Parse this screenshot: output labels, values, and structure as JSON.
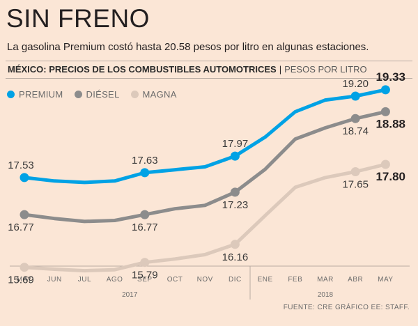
{
  "title": "SIN FRENO",
  "subtitle": "La gasolina Premium costó hasta 20.58 pesos por litro en algunas estaciones.",
  "header": {
    "main": "MÉXICO: PRECIOS DE LOS COMBUSTIBLES AUTOMOTRICES",
    "separator": "|",
    "unit": "PESOS POR LITRO"
  },
  "source": "FUENTE: CRE GRÁFICO EE: STAFF.",
  "chart_data": {
    "type": "line",
    "categories": [
      "MAY",
      "JUN",
      "JUL",
      "AGO",
      "SEP",
      "OCT",
      "NOV",
      "DIC",
      "ENE",
      "FEB",
      "MAR",
      "ABR",
      "MAY"
    ],
    "year_labels": [
      {
        "label": "2017",
        "from": 0,
        "to": 7
      },
      {
        "label": "2018",
        "from": 8,
        "to": 12
      }
    ],
    "ylim": [
      15.2,
      19.6
    ],
    "series": [
      {
        "name": "PREMIUM",
        "color": "#00a2e5",
        "values": [
          17.53,
          17.46,
          17.43,
          17.46,
          17.63,
          17.69,
          17.75,
          17.97,
          18.36,
          18.88,
          19.12,
          19.2,
          19.33
        ],
        "markers": [
          0,
          4,
          7,
          11,
          12
        ],
        "labels": [
          {
            "i": 0,
            "text": "17.53",
            "pos": "above",
            "bold": false
          },
          {
            "i": 4,
            "text": "17.63",
            "pos": "above",
            "bold": false
          },
          {
            "i": 7,
            "text": "17.97",
            "pos": "above",
            "bold": false
          },
          {
            "i": 11,
            "text": "19.20",
            "pos": "above",
            "bold": false
          },
          {
            "i": 12,
            "text": "19.33",
            "pos": "above",
            "bold": true
          }
        ]
      },
      {
        "name": "DIÉSEL",
        "color": "#8c8c8c",
        "values": [
          16.77,
          16.69,
          16.63,
          16.65,
          16.77,
          16.89,
          16.96,
          17.23,
          17.7,
          18.32,
          18.55,
          18.74,
          18.88
        ],
        "markers": [
          0,
          4,
          7,
          11,
          12
        ],
        "labels": [
          {
            "i": 0,
            "text": "16.77",
            "pos": "below",
            "bold": false
          },
          {
            "i": 4,
            "text": "16.77",
            "pos": "below",
            "bold": false
          },
          {
            "i": 7,
            "text": "17.23",
            "pos": "below",
            "bold": false
          },
          {
            "i": 11,
            "text": "18.74",
            "pos": "below",
            "bold": false
          },
          {
            "i": 12,
            "text": "18.88",
            "pos": "below",
            "bold": true
          }
        ]
      },
      {
        "name": "MAGNA",
        "color": "#dcc9bb",
        "values": [
          15.69,
          15.65,
          15.62,
          15.64,
          15.79,
          15.86,
          15.95,
          16.16,
          16.75,
          17.33,
          17.53,
          17.65,
          17.8
        ],
        "markers": [
          0,
          4,
          7,
          11,
          12
        ],
        "labels": [
          {
            "i": 0,
            "text": "15.69",
            "pos": "below",
            "bold": false
          },
          {
            "i": 4,
            "text": "15.79",
            "pos": "below",
            "bold": false
          },
          {
            "i": 7,
            "text": "16.16",
            "pos": "below",
            "bold": false
          },
          {
            "i": 11,
            "text": "17.65",
            "pos": "below",
            "bold": false
          },
          {
            "i": 12,
            "text": "17.80",
            "pos": "below",
            "bold": true
          }
        ]
      }
    ]
  }
}
